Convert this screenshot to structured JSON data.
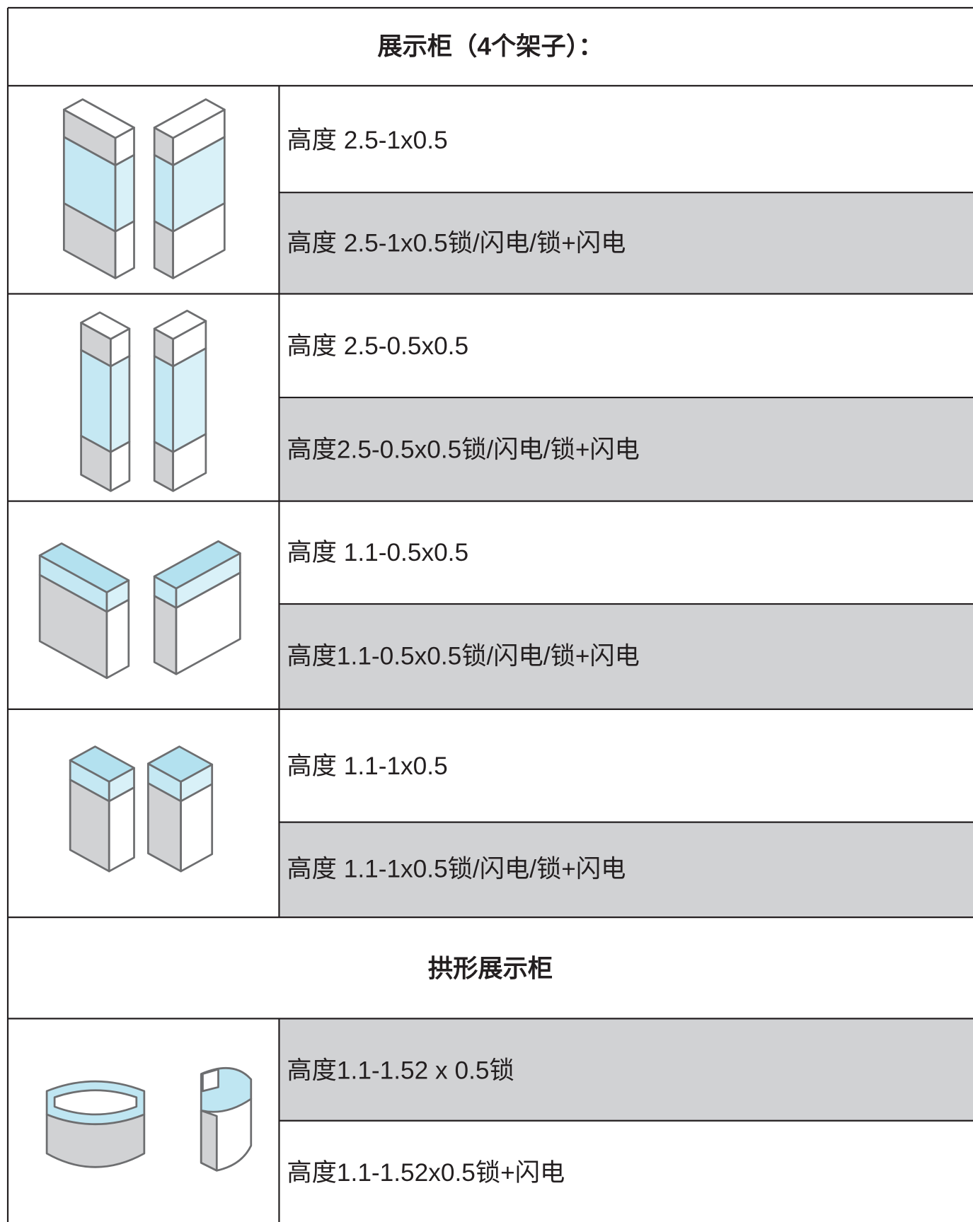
{
  "sections": [
    {
      "title": "展示柜（4个架子）：",
      "rows": [
        "高度 2.5-1x0.5",
        "高度 2.5-1x0.5锁/闪电/锁+闪电",
        "高度 2.5-0.5x0.5",
        "高度2.5-0.5x0.5锁/闪电/锁+闪电",
        "高度 1.1-0.5x0.5",
        "高度1.1-0.5x0.5锁/闪电/锁+闪电",
        "高度 1.1-1x0.5",
        "高度 1.1-1x0.5锁/闪电/锁+闪电"
      ]
    },
    {
      "title": "拱形展示柜",
      "rows": [
        "高度1.1-1.52 x 0.5锁",
        "高度1.1-1.52x0.5锁+闪电"
      ]
    }
  ]
}
